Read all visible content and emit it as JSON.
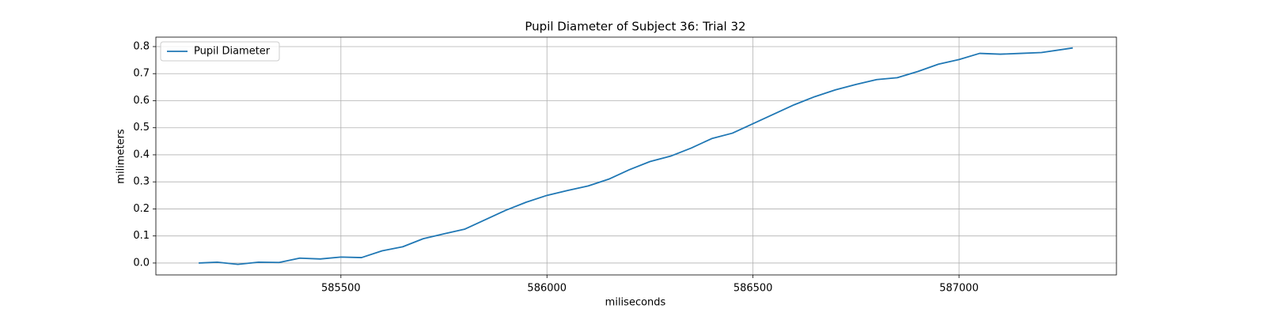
{
  "chart_data": {
    "type": "line",
    "title": "Pupil Diameter of Subject 36: Trial 32",
    "x_label": "miliseconds",
    "y_label": "milimeters",
    "x": [
      585155,
      585200,
      585250,
      585300,
      585350,
      585400,
      585450,
      585500,
      585550,
      585600,
      585650,
      585700,
      585750,
      585800,
      585850,
      585900,
      585950,
      586000,
      586050,
      586100,
      586150,
      586200,
      586250,
      586300,
      586350,
      586400,
      586450,
      586500,
      586550,
      586600,
      586650,
      586700,
      586750,
      586800,
      586850,
      586900,
      586950,
      587000,
      587050,
      587100,
      587150,
      587200,
      587276
    ],
    "series": [
      {
        "name": "Pupil Diameter",
        "color": "#1f77b4",
        "values": [
          0.0,
          0.003,
          -0.005,
          0.003,
          0.002,
          0.018,
          0.015,
          0.022,
          0.02,
          0.045,
          0.06,
          0.09,
          0.108,
          0.125,
          0.16,
          0.195,
          0.225,
          0.25,
          0.268,
          0.285,
          0.31,
          0.345,
          0.375,
          0.395,
          0.425,
          0.46,
          0.48,
          0.515,
          0.55,
          0.585,
          0.615,
          0.64,
          0.66,
          0.678,
          0.685,
          0.708,
          0.735,
          0.752,
          0.775,
          0.772,
          0.775,
          0.778,
          0.795
        ]
      }
    ],
    "xlim": [
      585051,
      587382
    ],
    "ylim": [
      -0.044,
      0.835
    ],
    "xticks": [
      585500,
      586000,
      586500,
      587000
    ],
    "yticks": [
      {
        "value": 0.0,
        "label": "0.0"
      },
      0.1,
      0.2,
      0.3,
      0.4,
      0.5,
      0.6,
      0.7,
      0.8
    ],
    "grid": true,
    "legend": "upper left"
  }
}
